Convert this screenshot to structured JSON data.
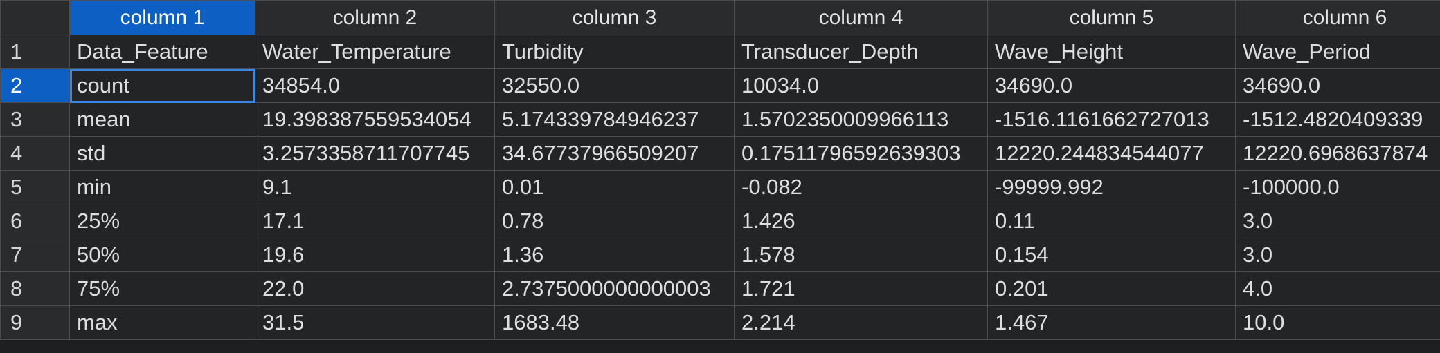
{
  "colors": {
    "background": "#1e1f20",
    "header_bg": "#2a2b2d",
    "selected_bg": "#0d5fc3",
    "focus_outline": "#3c86e6",
    "grid_line": "#4a4d52"
  },
  "columns": [
    "column 1",
    "column 2",
    "column 3",
    "column 4",
    "column 5",
    "column 6"
  ],
  "rows": [
    {
      "num": "1",
      "cells": [
        "Data_Feature",
        "Water_Temperature",
        "Turbidity",
        "Transducer_Depth",
        "Wave_Height",
        "Wave_Period"
      ]
    },
    {
      "num": "2",
      "cells": [
        "count",
        " 34854.0",
        "32550.0",
        "10034.0",
        "34690.0",
        "34690.0"
      ]
    },
    {
      "num": "3",
      "cells": [
        "mean",
        "19.398387559534054",
        "5.174339784946237",
        "1.5702350009966113",
        "-1516.1161662727013",
        "-1512.4820409339"
      ]
    },
    {
      "num": "4",
      "cells": [
        "std",
        "3.2573358711707745",
        "34.67737966509207",
        "0.17511796592639303",
        "12220.244834544077",
        "12220.6968637874"
      ]
    },
    {
      "num": "5",
      "cells": [
        "min",
        "9.1",
        "0.01",
        "-0.082",
        "-99999.992",
        "-100000.0"
      ]
    },
    {
      "num": "6",
      "cells": [
        "25%",
        "17.1",
        "0.78",
        "1.426",
        "0.11",
        "3.0"
      ]
    },
    {
      "num": "7",
      "cells": [
        "50%",
        "19.6",
        "1.36",
        "1.578",
        "0.154",
        "3.0"
      ]
    },
    {
      "num": "8",
      "cells": [
        "75%",
        "22.0",
        "2.7375000000000003",
        "1.721",
        "0.201",
        "4.0"
      ]
    },
    {
      "num": "9",
      "cells": [
        "max",
        "31.5",
        "1683.48",
        "2.214",
        "1.467",
        "10.0"
      ]
    }
  ]
}
